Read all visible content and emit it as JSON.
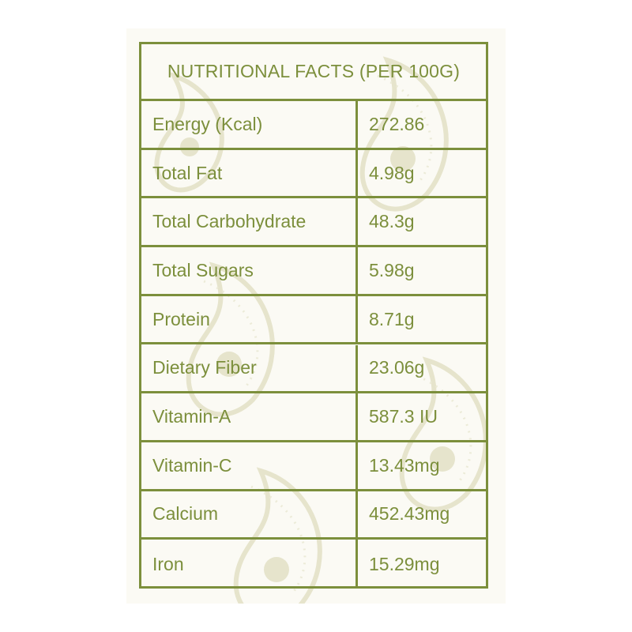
{
  "table": {
    "title": "NUTRITIONAL FACTS (PER 100G)",
    "rows": [
      {
        "label": "Energy (Kcal)",
        "value": "272.86"
      },
      {
        "label": "Total Fat",
        "value": "4.98g"
      },
      {
        "label": "Total Carbohydrate",
        "value": "48.3g"
      },
      {
        "label": "Total Sugars",
        "value": "5.98g"
      },
      {
        "label": "Protein",
        "value": "8.71g"
      },
      {
        "label": "Dietary Fiber",
        "value": "23.06g"
      },
      {
        "label": "Vitamin-A",
        "value": "587.3 IU"
      },
      {
        "label": "Vitamin-C",
        "value": "13.43mg"
      },
      {
        "label": "Calcium",
        "value": "452.43mg"
      },
      {
        "label": "Iron",
        "value": "15.29mg"
      }
    ]
  },
  "colors": {
    "accent": "#7c8f3c",
    "background": "#fbfaf4",
    "pattern": "#e6e4cc"
  },
  "decoration": {
    "pattern_icon": "paisley-pattern"
  }
}
